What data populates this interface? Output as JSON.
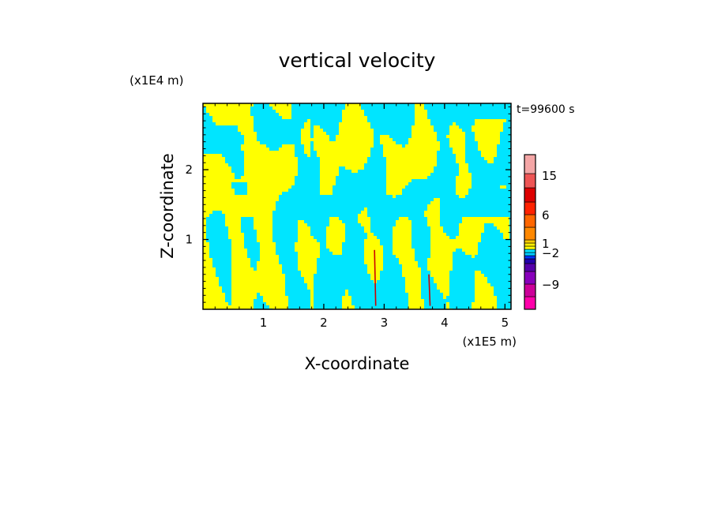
{
  "chart_data": {
    "type": "heatmap",
    "title": "vertical velocity",
    "xlabel": "X-coordinate",
    "ylabel": "Z-coordinate",
    "x_unit": "(x1E5 m)",
    "y_unit": "(x1E4 m)",
    "time_label": "t=99600 s",
    "xlim": [
      0.0,
      5.1
    ],
    "ylim": [
      0.0,
      2.95
    ],
    "x_ticks": [
      1,
      2,
      3,
      4,
      5
    ],
    "x_tick_labels": [
      "1",
      "2",
      "3",
      "4",
      "5"
    ],
    "y_ticks": [
      1,
      2
    ],
    "y_tick_labels": [
      "1",
      "2"
    ],
    "colorbar": {
      "labeled_levels": [
        "15",
        "6",
        "1",
        "−2",
        "−9"
      ],
      "label_values": [
        15,
        6,
        1,
        -2,
        -9
      ],
      "colors_bottom_to_top": [
        "#ff00aa",
        "#cc0099",
        "#8800bb",
        "#5500aa",
        "#2200aa",
        "#0033ff",
        "#00ccff",
        "#00e5ff",
        "#ffff00",
        "#ffee00",
        "#ffcc00",
        "#ff8800",
        "#ff6600",
        "#ff2200",
        "#dd0000",
        "#ee5555",
        "#f4a6a6",
        "#fce6e6"
      ]
    },
    "field_colors": {
      "positive": "#ffff00",
      "negative": "#00e5ff",
      "strong_updraft": "#cc0000"
    }
  }
}
